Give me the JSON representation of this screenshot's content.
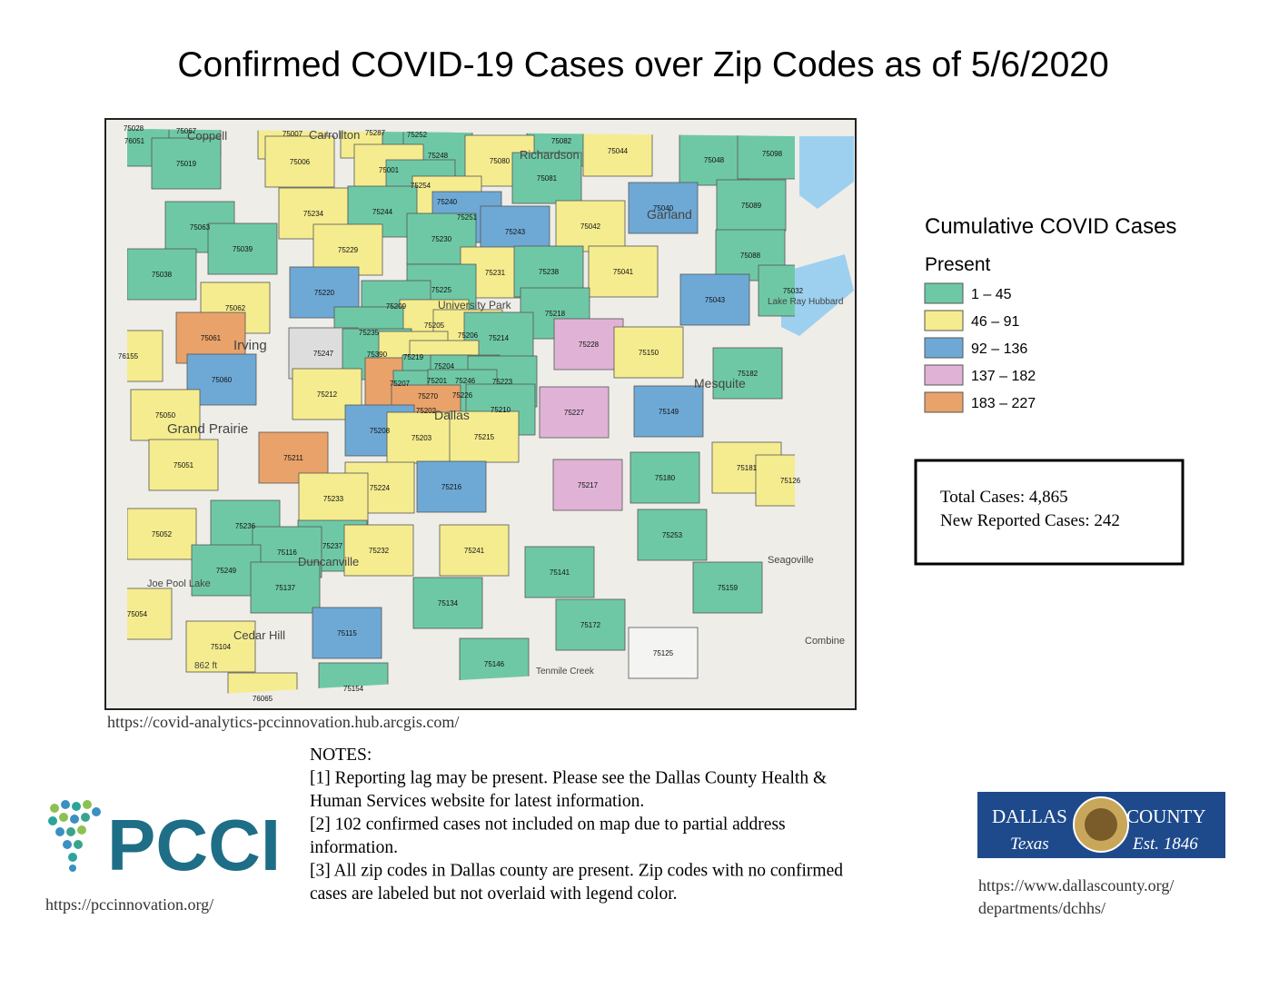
{
  "title": "Confirmed COVID-19 Cases over Zip Codes as of 5/6/2020",
  "map": {
    "zips": [
      {
        "label": "75028",
        "color": "#6ec8a6"
      },
      {
        "label": "75067",
        "color": "#6ec8a6"
      },
      {
        "label": "75007",
        "color": "#f5ec8f"
      },
      {
        "label": "75287",
        "color": "#f5ec8f"
      },
      {
        "label": "75252",
        "color": "#6ec8a6"
      },
      {
        "label": "75082",
        "color": "#6ec8a6"
      },
      {
        "label": "76051",
        "color": "#6ec8a6"
      },
      {
        "label": "75019",
        "color": "#6ec8a6"
      },
      {
        "label": "75006",
        "color": "#f5ec8f"
      },
      {
        "label": "75248",
        "color": "#6ec8a6"
      },
      {
        "label": "75080",
        "color": "#f5ec8f"
      },
      {
        "label": "75081",
        "color": "#6ec8a6"
      },
      {
        "label": "75044",
        "color": "#f5ec8f"
      },
      {
        "label": "75048",
        "color": "#6ec8a6"
      },
      {
        "label": "75098",
        "color": "#6ec8a6"
      },
      {
        "label": "75001",
        "color": "#f5ec8f"
      },
      {
        "label": "75254",
        "color": "#6ec8a6"
      },
      {
        "label": "75240",
        "color": "#f5ec8f"
      },
      {
        "label": "75040",
        "color": "#6ea9d6"
      },
      {
        "label": "75089",
        "color": "#6ec8a6"
      },
      {
        "label": "75063",
        "color": "#6ec8a6"
      },
      {
        "label": "75234",
        "color": "#f5ec8f"
      },
      {
        "label": "75244",
        "color": "#6ec8a6"
      },
      {
        "label": "75251",
        "color": "#6ea9d6"
      },
      {
        "label": "75243",
        "color": "#6ea9d6"
      },
      {
        "label": "75042",
        "color": "#f5ec8f"
      },
      {
        "label": "75230",
        "color": "#6ec8a6"
      },
      {
        "label": "75039",
        "color": "#6ec8a6"
      },
      {
        "label": "75229",
        "color": "#f5ec8f"
      },
      {
        "label": "75088",
        "color": "#6ec8a6"
      },
      {
        "label": "75231",
        "color": "#f5ec8f"
      },
      {
        "label": "75238",
        "color": "#6ec8a6"
      },
      {
        "label": "75041",
        "color": "#f5ec8f"
      },
      {
        "label": "75038",
        "color": "#6ec8a6"
      },
      {
        "label": "75220",
        "color": "#6ea9d6"
      },
      {
        "label": "75225",
        "color": "#6ec8a6"
      },
      {
        "label": "75032",
        "color": "#6ec8a6"
      },
      {
        "label": "75043",
        "color": "#6ea9d6"
      },
      {
        "label": "75062",
        "color": "#f5ec8f"
      },
      {
        "label": "75209",
        "color": "#6ec8a6"
      },
      {
        "label": "75218",
        "color": "#6ec8a6"
      },
      {
        "label": "75205",
        "color": "#f5ec8f"
      },
      {
        "label": "75235",
        "color": "#6ec8a6"
      },
      {
        "label": "75206",
        "color": "#f5ec8f"
      },
      {
        "label": "75214",
        "color": "#6ec8a6"
      },
      {
        "label": "75228",
        "color": "#e0b3d6"
      },
      {
        "label": "75150",
        "color": "#f5ec8f"
      },
      {
        "label": "75061",
        "color": "#e8a26a"
      },
      {
        "label": "75247",
        "color": "#dddddd"
      },
      {
        "label": "75390",
        "color": "#6ec8a6"
      },
      {
        "label": "75219",
        "color": "#f5ec8f"
      },
      {
        "label": "76155",
        "color": "#f5ec8f"
      },
      {
        "label": "75204",
        "color": "#f5ec8f"
      },
      {
        "label": "75060",
        "color": "#6ea9d6"
      },
      {
        "label": "75207",
        "color": "#e8a26a"
      },
      {
        "label": "75201",
        "color": "#6ec8a6"
      },
      {
        "label": "75246",
        "color": "#6ec8a6"
      },
      {
        "label": "75223",
        "color": "#6ec8a6"
      },
      {
        "label": "75182",
        "color": "#6ec8a6"
      },
      {
        "label": "75270",
        "color": "#6ec8a6"
      },
      {
        "label": "75226",
        "color": "#6ec8a6"
      },
      {
        "label": "75212",
        "color": "#f5ec8f"
      },
      {
        "label": "75210",
        "color": "#6ec8a6"
      },
      {
        "label": "75227",
        "color": "#e0b3d6"
      },
      {
        "label": "75149",
        "color": "#6ea9d6"
      },
      {
        "label": "75202",
        "color": "#e8a26a"
      },
      {
        "label": "75050",
        "color": "#f5ec8f"
      },
      {
        "label": "75208",
        "color": "#6ea9d6"
      },
      {
        "label": "75203",
        "color": "#f5ec8f"
      },
      {
        "label": "75215",
        "color": "#f5ec8f"
      },
      {
        "label": "75211",
        "color": "#e8a26a"
      },
      {
        "label": "75051",
        "color": "#f5ec8f"
      },
      {
        "label": "75181",
        "color": "#f5ec8f"
      },
      {
        "label": "75126",
        "color": "#f5ec8f"
      },
      {
        "label": "75180",
        "color": "#6ec8a6"
      },
      {
        "label": "75217",
        "color": "#e0b3d6"
      },
      {
        "label": "75216",
        "color": "#6ea9d6"
      },
      {
        "label": "75224",
        "color": "#f5ec8f"
      },
      {
        "label": "75233",
        "color": "#f5ec8f"
      },
      {
        "label": "75236",
        "color": "#6ec8a6"
      },
      {
        "label": "75052",
        "color": "#f5ec8f"
      },
      {
        "label": "75253",
        "color": "#6ec8a6"
      },
      {
        "label": "75237",
        "color": "#6ec8a6"
      },
      {
        "label": "75116",
        "color": "#6ec8a6"
      },
      {
        "label": "75232",
        "color": "#f5ec8f"
      },
      {
        "label": "75241",
        "color": "#f5ec8f"
      },
      {
        "label": "75141",
        "color": "#6ec8a6"
      },
      {
        "label": "75249",
        "color": "#6ec8a6"
      },
      {
        "label": "75137",
        "color": "#6ec8a6"
      },
      {
        "label": "75159",
        "color": "#6ec8a6"
      },
      {
        "label": "75134",
        "color": "#6ec8a6"
      },
      {
        "label": "75054",
        "color": "#f5ec8f"
      },
      {
        "label": "75172",
        "color": "#6ec8a6"
      },
      {
        "label": "75115",
        "color": "#6ea9d6"
      },
      {
        "label": "75104",
        "color": "#f5ec8f"
      },
      {
        "label": "75125",
        "color": "#f4f4f2"
      },
      {
        "label": "75146",
        "color": "#6ec8a6"
      },
      {
        "label": "75154",
        "color": "#6ec8a6"
      },
      {
        "label": "76065",
        "color": "#f5ec8f"
      }
    ],
    "places": [
      "Coppell",
      "Carrollton",
      "Richardson",
      "Garland",
      "Irving",
      "Grand Prairie",
      "Dallas",
      "University Park",
      "Mesquite",
      "Duncanville",
      "Cedar Hill",
      "Seagoville",
      "Combine",
      "Lake Ray Hubbard",
      "Joe Pool Lake",
      "Tenmile Creek",
      "862 ft"
    ]
  },
  "legend": {
    "title": "Cumulative COVID Cases",
    "subtitle": "Present",
    "items": [
      {
        "label": "1 – 45",
        "color": "#6ec8a6"
      },
      {
        "label": "46 – 91",
        "color": "#f5ec8f"
      },
      {
        "label": "92 – 136",
        "color": "#6ea9d6"
      },
      {
        "label": "137 – 182",
        "color": "#e0b3d6"
      },
      {
        "label": "183 – 227",
        "color": "#e8a26a"
      }
    ]
  },
  "totals": [
    "Total Cases: 4,865",
    "New Reported Cases: 242"
  ],
  "source_url": "https://covid-analytics-pccinnovation.hub.arcgis.com/",
  "notes": [
    "NOTES:",
    "[1] Reporting lag may be present. Please see the Dallas County Health &",
    "Human Services website for latest information.",
    "[2] 102 confirmed cases not included on map due to partial address",
    "information.",
    "[3] All zip codes in Dallas county are present. Zip codes with no confirmed",
    "cases are labeled but not overlaid with legend color."
  ],
  "pcci": {
    "logo": "PCCI",
    "url": "https://pccinnovation.org/"
  },
  "dallas_county": {
    "name": "DALLAS",
    "county": "COUNTY",
    "state": "Texas",
    "established": "Est. 1846",
    "url": [
      "https://www.dallascounty.org/",
      "departments/dchhs/"
    ]
  }
}
